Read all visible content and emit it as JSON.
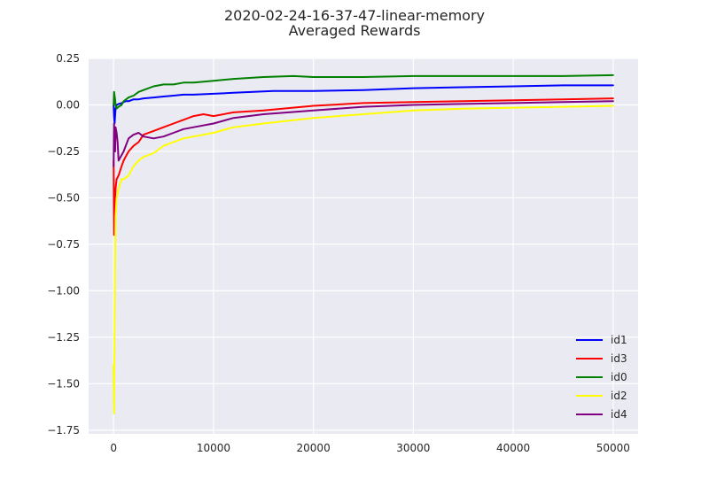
{
  "chart_data": {
    "type": "line",
    "title": "2020-02-24-16-37-47-linear-memory",
    "subtitle": "Averaged Rewards",
    "xlabel": "",
    "ylabel": "",
    "xlim": [
      -2500,
      52500
    ],
    "ylim": [
      -1.77,
      0.25
    ],
    "xticks": [
      0,
      10000,
      20000,
      30000,
      40000,
      50000
    ],
    "xtick_labels": [
      "0",
      "10000",
      "20000",
      "30000",
      "40000",
      "50000"
    ],
    "yticks": [
      0.25,
      0.0,
      -0.25,
      -0.5,
      -0.75,
      -1.0,
      -1.25,
      -1.5,
      -1.75
    ],
    "ytick_labels": [
      "0.25",
      "0.00",
      "−0.25",
      "−0.50",
      "−0.75",
      "−1.00",
      "−1.25",
      "−1.50",
      "−1.75"
    ],
    "grid": true,
    "legend_position": "bottom-right",
    "background_color": "#eaeaf2",
    "series": [
      {
        "name": "id1",
        "color": "#0000ff",
        "x": [
          0,
          50,
          100,
          200,
          300,
          500,
          800,
          1200,
          1500,
          2000,
          2500,
          3000,
          4000,
          5000,
          6000,
          7000,
          8000,
          10000,
          12000,
          14000,
          16000,
          18000,
          20000,
          25000,
          30000,
          35000,
          40000,
          45000,
          50000
        ],
        "y": [
          0.0,
          -0.06,
          -0.1,
          -0.02,
          0.0,
          0.005,
          0.01,
          0.02,
          0.02,
          0.03,
          0.03,
          0.035,
          0.04,
          0.045,
          0.05,
          0.055,
          0.055,
          0.06,
          0.065,
          0.07,
          0.075,
          0.075,
          0.075,
          0.08,
          0.09,
          0.095,
          0.1,
          0.105,
          0.105
        ]
      },
      {
        "name": "id3",
        "color": "#ff0000",
        "x": [
          0,
          50,
          100,
          150,
          200,
          300,
          500,
          800,
          1000,
          1200,
          1500,
          2000,
          2500,
          3000,
          4000,
          5000,
          6000,
          7000,
          8000,
          9000,
          10000,
          12000,
          15000,
          20000,
          25000,
          30000,
          35000,
          40000,
          45000,
          50000
        ],
        "y": [
          -0.3,
          -0.7,
          -0.55,
          -0.5,
          -0.45,
          -0.4,
          -0.38,
          -0.33,
          -0.3,
          -0.28,
          -0.25,
          -0.22,
          -0.2,
          -0.16,
          -0.14,
          -0.12,
          -0.1,
          -0.08,
          -0.06,
          -0.05,
          -0.06,
          -0.04,
          -0.03,
          -0.005,
          0.01,
          0.015,
          0.02,
          0.025,
          0.03,
          0.035
        ]
      },
      {
        "name": "id0",
        "color": "#008000",
        "x": [
          0,
          50,
          100,
          150,
          200,
          300,
          500,
          800,
          1000,
          1500,
          2000,
          2500,
          3000,
          4000,
          5000,
          6000,
          7000,
          8000,
          10000,
          12000,
          15000,
          18000,
          20000,
          25000,
          30000,
          35000,
          40000,
          45000,
          50000
        ],
        "y": [
          0.0,
          0.07,
          0.05,
          0.03,
          0.0,
          -0.02,
          -0.01,
          0.0,
          0.02,
          0.04,
          0.05,
          0.07,
          0.08,
          0.1,
          0.11,
          0.11,
          0.12,
          0.12,
          0.13,
          0.14,
          0.15,
          0.155,
          0.15,
          0.15,
          0.155,
          0.155,
          0.155,
          0.155,
          0.16
        ]
      },
      {
        "name": "id2",
        "color": "#ffff00",
        "x": [
          0,
          50,
          100,
          150,
          200,
          300,
          500,
          800,
          1000,
          1500,
          2000,
          2500,
          3000,
          4000,
          5000,
          6000,
          7000,
          8000,
          10000,
          12000,
          15000,
          20000,
          25000,
          30000,
          35000,
          40000,
          45000,
          50000
        ],
        "y": [
          -1.4,
          -1.66,
          -1.2,
          -0.8,
          -0.6,
          -0.5,
          -0.45,
          -0.4,
          -0.4,
          -0.38,
          -0.33,
          -0.3,
          -0.28,
          -0.26,
          -0.22,
          -0.2,
          -0.18,
          -0.17,
          -0.15,
          -0.12,
          -0.1,
          -0.07,
          -0.05,
          -0.03,
          -0.02,
          -0.015,
          -0.01,
          -0.005
        ]
      },
      {
        "name": "id4",
        "color": "#800080",
        "x": [
          0,
          50,
          100,
          150,
          200,
          300,
          400,
          500,
          700,
          1000,
          1500,
          2000,
          2500,
          3000,
          4000,
          5000,
          6000,
          7000,
          8000,
          10000,
          12000,
          15000,
          20000,
          25000,
          30000,
          35000,
          40000,
          45000,
          50000
        ],
        "y": [
          -0.33,
          -0.1,
          -0.18,
          -0.25,
          -0.12,
          -0.15,
          -0.2,
          -0.3,
          -0.28,
          -0.25,
          -0.18,
          -0.16,
          -0.15,
          -0.17,
          -0.18,
          -0.17,
          -0.15,
          -0.13,
          -0.12,
          -0.1,
          -0.07,
          -0.05,
          -0.03,
          -0.01,
          0.0,
          0.005,
          0.01,
          0.015,
          0.02
        ]
      }
    ]
  }
}
